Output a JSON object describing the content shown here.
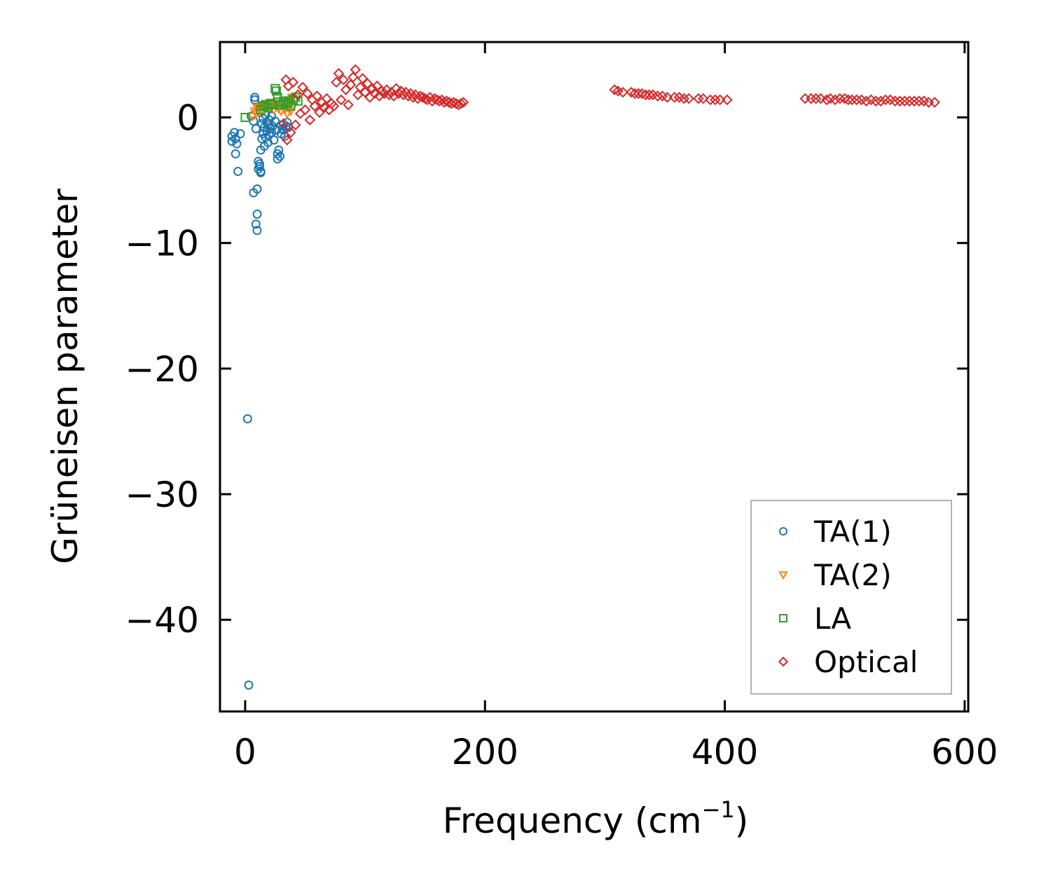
{
  "chart_data": {
    "type": "scatter",
    "title": "",
    "xlabel_main": "Frequency (cm",
    "xlabel_sup": "−1",
    "xlabel_tail": ")",
    "ylabel": "Grüneisen parameter",
    "xlim": [
      -21,
      603
    ],
    "ylim": [
      -47.3,
      6
    ],
    "x_ticks": [
      0,
      200,
      400,
      600
    ],
    "x_tick_labels": [
      "0",
      "200",
      "400",
      "600"
    ],
    "y_ticks": [
      0,
      -10,
      -20,
      -30,
      -40
    ],
    "y_tick_labels": [
      "0",
      "−10",
      "−20",
      "−30",
      "−40"
    ],
    "grid": false,
    "legend_position": "bottom-right",
    "series": [
      {
        "name": "TA(1)",
        "marker": "circle",
        "color": "#1f77b4",
        "points": [
          [
            -11,
            -1.5
          ],
          [
            -11,
            -1.9
          ],
          [
            -9,
            -1.2
          ],
          [
            -8,
            -1.7
          ],
          [
            -8,
            -2.9
          ],
          [
            -7,
            -2.1
          ],
          [
            -6,
            -4.3
          ],
          [
            -4,
            -1.3
          ],
          [
            2,
            -24.0
          ],
          [
            3,
            -45.2
          ],
          [
            5,
            0.1
          ],
          [
            7,
            -0.3
          ],
          [
            7,
            -6.0
          ],
          [
            8,
            1.6
          ],
          [
            8,
            1.4
          ],
          [
            9,
            -8.5
          ],
          [
            9,
            -0.9
          ],
          [
            10,
            -9.0
          ],
          [
            10,
            -7.7
          ],
          [
            10,
            -5.7
          ],
          [
            11,
            -3.5
          ],
          [
            11,
            -4.1
          ],
          [
            12,
            -3.7
          ],
          [
            12,
            -3.9
          ],
          [
            13,
            -4.4
          ],
          [
            13,
            -4.3
          ],
          [
            13,
            -2.6
          ],
          [
            14,
            -1.7
          ],
          [
            14,
            -0.5
          ],
          [
            15,
            -1.3
          ],
          [
            15,
            -0.1
          ],
          [
            16,
            -2.3
          ],
          [
            16,
            -0.8
          ],
          [
            17,
            -1.6
          ],
          [
            17,
            0.2
          ],
          [
            18,
            -1.1
          ],
          [
            18,
            -0.4
          ],
          [
            19,
            -2.0
          ],
          [
            19,
            -0.6
          ],
          [
            20,
            -1.4
          ],
          [
            20,
            -0.2
          ],
          [
            21,
            -0.9
          ],
          [
            22,
            -1.2
          ],
          [
            22,
            0.1
          ],
          [
            23,
            -0.7
          ],
          [
            24,
            -1.8
          ],
          [
            25,
            -0.3
          ],
          [
            26,
            -1.0
          ],
          [
            27,
            -3.3
          ],
          [
            27,
            -2.9
          ],
          [
            28,
            -2.6
          ],
          [
            29,
            -3.1
          ],
          [
            30,
            -0.6
          ],
          [
            30,
            -1.3
          ],
          [
            31,
            -0.9
          ],
          [
            32,
            -1.0
          ],
          [
            33,
            -1.5
          ],
          [
            34,
            -0.7
          ],
          [
            35,
            -0.4
          ],
          [
            36,
            -0.8
          ]
        ]
      },
      {
        "name": "TA(2)",
        "marker": "triangle-down",
        "color": "#ff7f0e",
        "points": [
          [
            6,
            0.1
          ],
          [
            8,
            0.5
          ],
          [
            9,
            0.3
          ],
          [
            10,
            0.8
          ],
          [
            11,
            0.4
          ],
          [
            12,
            0.7
          ],
          [
            13,
            0.9
          ],
          [
            14,
            0.6
          ],
          [
            15,
            1.0
          ],
          [
            16,
            0.8
          ],
          [
            17,
            1.1
          ],
          [
            18,
            0.7
          ],
          [
            19,
            1.0
          ],
          [
            20,
            0.9
          ],
          [
            21,
            1.2
          ],
          [
            22,
            0.8
          ],
          [
            23,
            1.1
          ],
          [
            24,
            0.6
          ],
          [
            25,
            1.0
          ],
          [
            26,
            0.9
          ],
          [
            27,
            1.3
          ],
          [
            28,
            0.7
          ],
          [
            29,
            1.1
          ],
          [
            30,
            0.5
          ],
          [
            31,
            0.9
          ],
          [
            32,
            1.2
          ],
          [
            33,
            0.6
          ],
          [
            34,
            1.0
          ],
          [
            35,
            0.3
          ],
          [
            36,
            0.8
          ],
          [
            37,
            1.4
          ],
          [
            38,
            0.5
          ],
          [
            39,
            1.6
          ],
          [
            40,
            0.9
          ]
        ]
      },
      {
        "name": "LA",
        "marker": "square",
        "color": "#2ca02c",
        "points": [
          [
            0,
            0.0
          ],
          [
            13,
            0.6
          ],
          [
            15,
            0.9
          ],
          [
            17,
            1.0
          ],
          [
            19,
            0.8
          ],
          [
            21,
            1.1
          ],
          [
            23,
            1.0
          ],
          [
            25,
            2.3
          ],
          [
            26,
            2.1
          ],
          [
            27,
            1.6
          ],
          [
            28,
            1.2
          ],
          [
            30,
            1.0
          ],
          [
            32,
            1.3
          ],
          [
            34,
            1.1
          ],
          [
            36,
            1.2
          ],
          [
            38,
            0.9
          ],
          [
            40,
            1.4
          ],
          [
            42,
            1.6
          ],
          [
            44,
            1.3
          ]
        ]
      },
      {
        "name": "Optical",
        "marker": "diamond",
        "color": "#d62728",
        "points": [
          [
            32,
            -0.5
          ],
          [
            34,
            3.0
          ],
          [
            35,
            -1.8
          ],
          [
            36,
            2.5
          ],
          [
            38,
            -1.2
          ],
          [
            40,
            2.8
          ],
          [
            42,
            -0.6
          ],
          [
            44,
            1.8
          ],
          [
            46,
            0.3
          ],
          [
            48,
            2.4
          ],
          [
            50,
            0.6
          ],
          [
            52,
            1.9
          ],
          [
            54,
            -0.2
          ],
          [
            56,
            1.4
          ],
          [
            58,
            0.9
          ],
          [
            60,
            1.7
          ],
          [
            62,
            0.4
          ],
          [
            64,
            1.2
          ],
          [
            66,
            0.8
          ],
          [
            68,
            1.5
          ],
          [
            70,
            0.6
          ],
          [
            72,
            1.1
          ],
          [
            74,
            0.9
          ],
          [
            76,
            2.8
          ],
          [
            78,
            3.5
          ],
          [
            80,
            1.4
          ],
          [
            82,
            3.0
          ],
          [
            84,
            2.2
          ],
          [
            86,
            1.0
          ],
          [
            88,
            2.6
          ],
          [
            90,
            3.2
          ],
          [
            92,
            3.8
          ],
          [
            94,
            1.8
          ],
          [
            96,
            2.4
          ],
          [
            98,
            3.1
          ],
          [
            100,
            2.0
          ],
          [
            102,
            2.7
          ],
          [
            104,
            1.6
          ],
          [
            106,
            2.3
          ],
          [
            108,
            1.9
          ],
          [
            110,
            2.5
          ],
          [
            112,
            1.7
          ],
          [
            114,
            2.1
          ],
          [
            116,
            1.9
          ],
          [
            118,
            2.2
          ],
          [
            120,
            1.8
          ],
          [
            122,
            2.0
          ],
          [
            124,
            1.7
          ],
          [
            126,
            2.3
          ],
          [
            128,
            1.9
          ],
          [
            130,
            2.1
          ],
          [
            132,
            1.8
          ],
          [
            134,
            2.0
          ],
          [
            136,
            1.7
          ],
          [
            138,
            1.9
          ],
          [
            140,
            1.6
          ],
          [
            142,
            1.8
          ],
          [
            144,
            1.5
          ],
          [
            146,
            1.7
          ],
          [
            148,
            1.6
          ],
          [
            150,
            1.5
          ],
          [
            152,
            1.4
          ],
          [
            154,
            1.6
          ],
          [
            156,
            1.3
          ],
          [
            158,
            1.5
          ],
          [
            160,
            1.4
          ],
          [
            162,
            1.3
          ],
          [
            164,
            1.4
          ],
          [
            166,
            1.2
          ],
          [
            168,
            1.3
          ],
          [
            170,
            1.2
          ],
          [
            172,
            1.1
          ],
          [
            174,
            1.2
          ],
          [
            176,
            1.1
          ],
          [
            178,
            1.0
          ],
          [
            180,
            1.1
          ],
          [
            182,
            1.2
          ],
          [
            308,
            2.2
          ],
          [
            311,
            2.1
          ],
          [
            315,
            2.0
          ],
          [
            322,
            2.0
          ],
          [
            325,
            1.9
          ],
          [
            328,
            1.9
          ],
          [
            331,
            1.9
          ],
          [
            334,
            1.8
          ],
          [
            337,
            1.8
          ],
          [
            340,
            1.8
          ],
          [
            344,
            1.7
          ],
          [
            348,
            1.7
          ],
          [
            352,
            1.6
          ],
          [
            358,
            1.6
          ],
          [
            362,
            1.6
          ],
          [
            366,
            1.5
          ],
          [
            370,
            1.5
          ],
          [
            378,
            1.5
          ],
          [
            382,
            1.5
          ],
          [
            388,
            1.4
          ],
          [
            392,
            1.4
          ],
          [
            396,
            1.4
          ],
          [
            402,
            1.4
          ],
          [
            467,
            1.5
          ],
          [
            472,
            1.5
          ],
          [
            476,
            1.5
          ],
          [
            480,
            1.5
          ],
          [
            485,
            1.4
          ],
          [
            488,
            1.5
          ],
          [
            492,
            1.4
          ],
          [
            496,
            1.5
          ],
          [
            500,
            1.5
          ],
          [
            503,
            1.4
          ],
          [
            506,
            1.4
          ],
          [
            510,
            1.4
          ],
          [
            514,
            1.4
          ],
          [
            518,
            1.3
          ],
          [
            522,
            1.4
          ],
          [
            526,
            1.3
          ],
          [
            530,
            1.3
          ],
          [
            534,
            1.4
          ],
          [
            538,
            1.4
          ],
          [
            542,
            1.3
          ],
          [
            546,
            1.3
          ],
          [
            550,
            1.3
          ],
          [
            554,
            1.3
          ],
          [
            558,
            1.3
          ],
          [
            562,
            1.3
          ],
          [
            566,
            1.3
          ],
          [
            570,
            1.2
          ],
          [
            575,
            1.2
          ]
        ]
      }
    ]
  }
}
